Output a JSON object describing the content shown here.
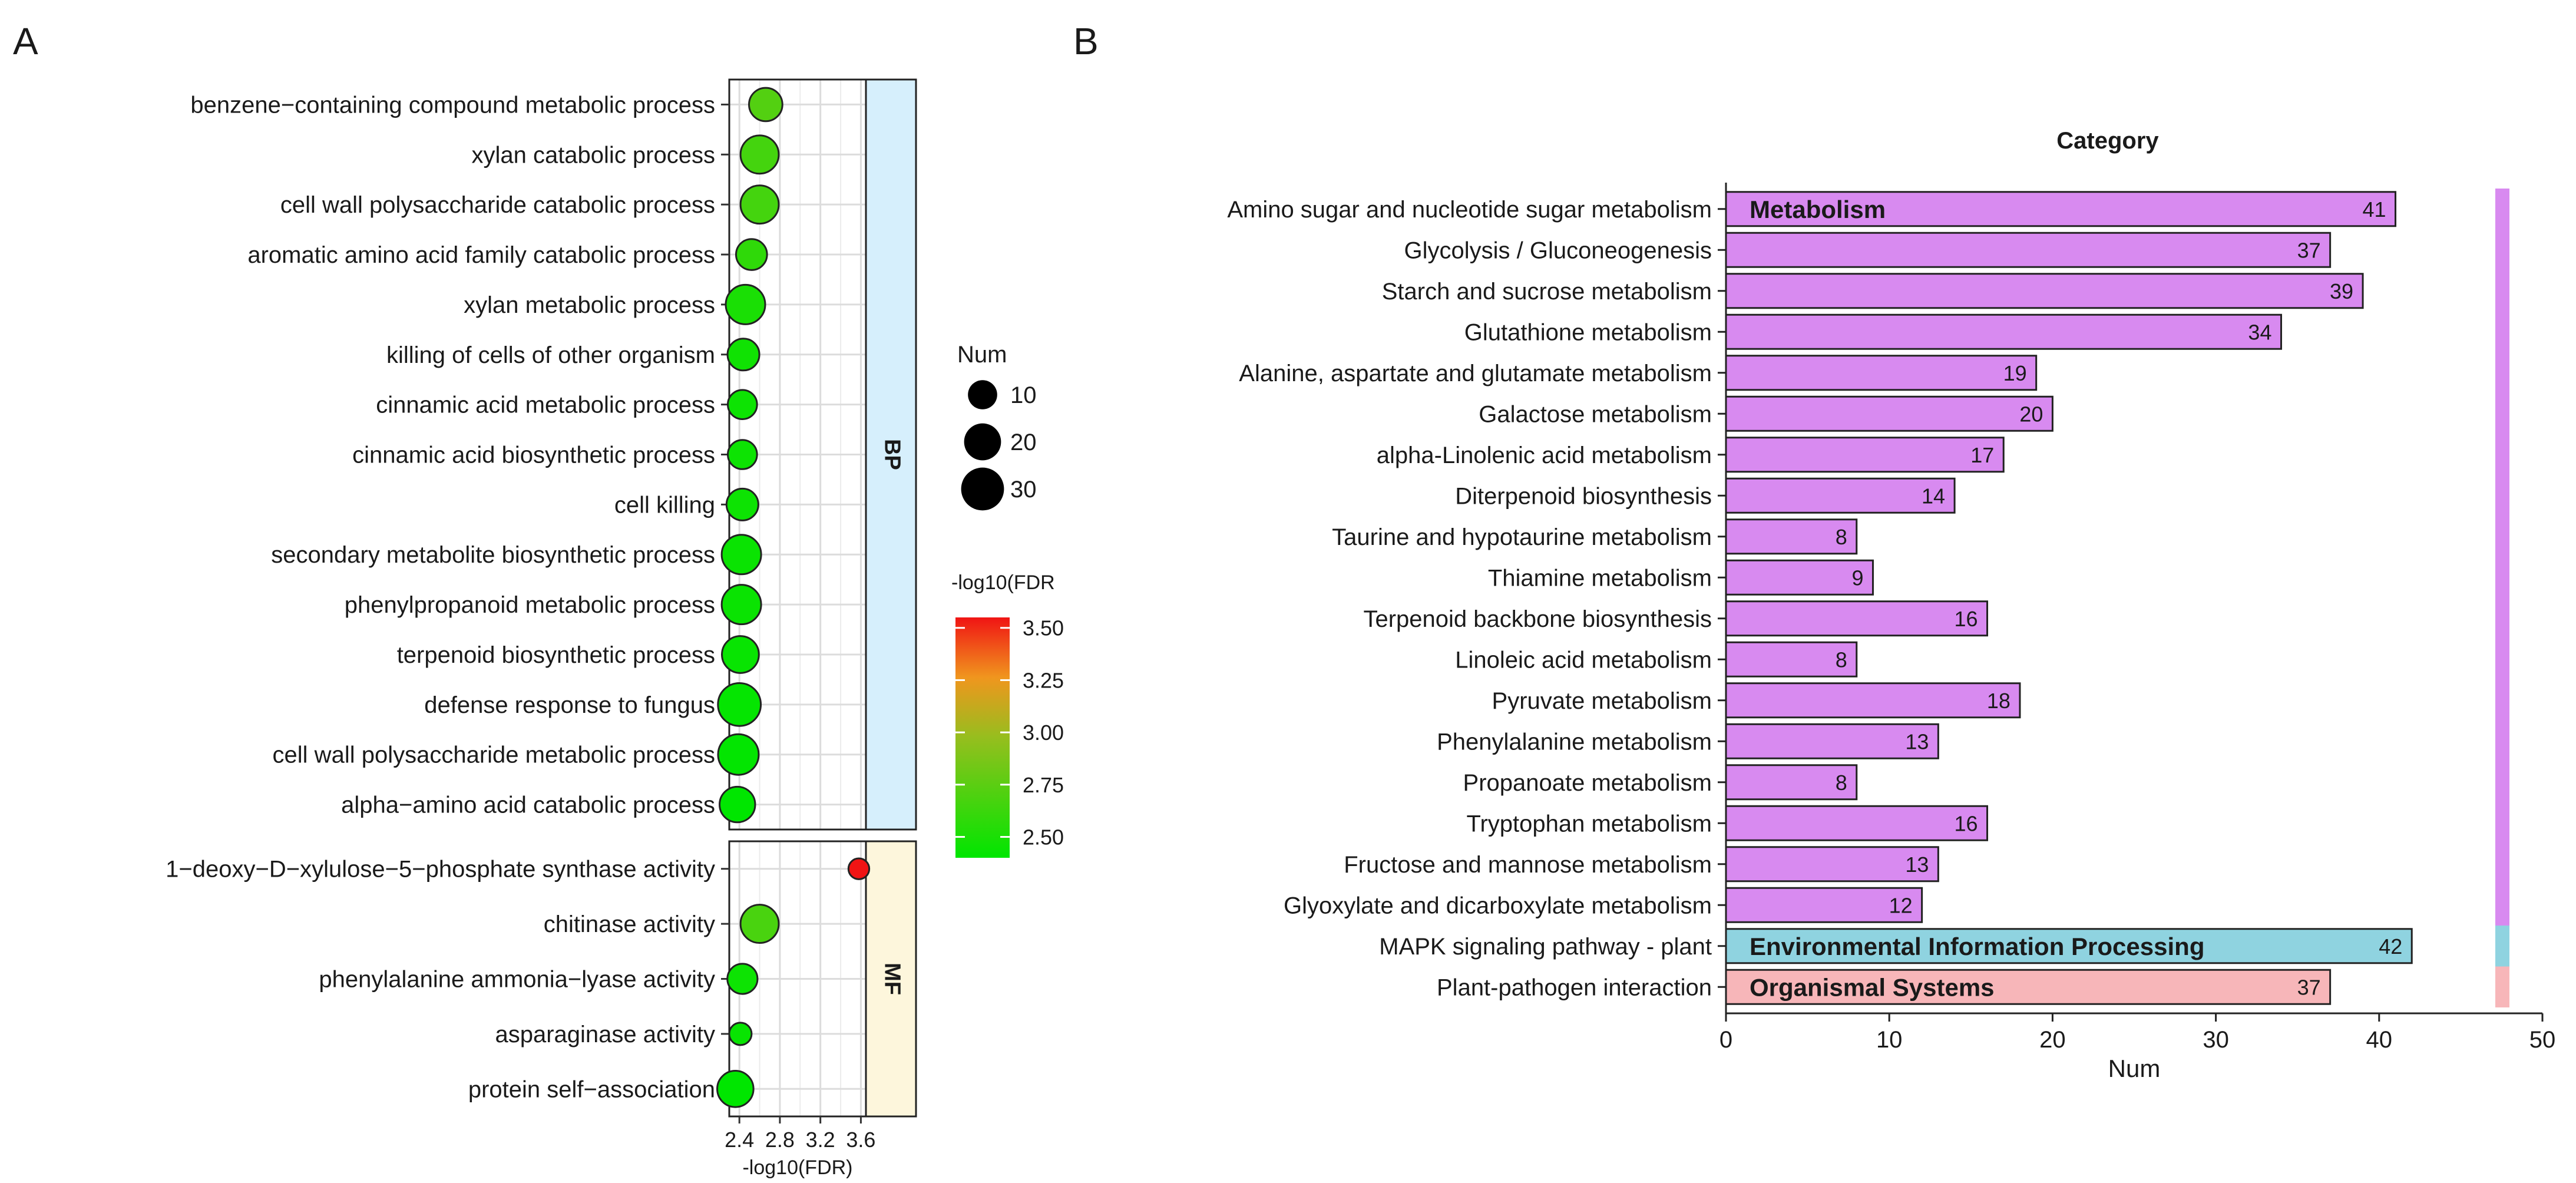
{
  "chart_data": [
    {
      "panel": "A",
      "type": "scatter",
      "xlabel": "-log10(FDR)",
      "xlim": [
        2.3,
        3.65
      ],
      "xticks": [
        "2.4",
        "2.8",
        "3.2",
        "3.6"
      ],
      "xtick_values": [
        2.4,
        2.8,
        3.2,
        3.6
      ],
      "size_legend": {
        "title": "Num",
        "values": [
          10,
          20,
          30
        ]
      },
      "color_legend": {
        "title": "-log10(FDR",
        "min": 2.4,
        "max": 3.55,
        "ticks": [
          "3.50",
          "3.25",
          "3.00",
          "2.75",
          "2.50"
        ],
        "tick_values": [
          3.5,
          3.25,
          3.0,
          2.75,
          2.5
        ]
      },
      "facets": [
        {
          "name": "BP",
          "terms": [
            {
              "label": "benzene−containing compound metabolic process",
              "x": 2.66,
              "num": 15,
              "fdr": 2.72
            },
            {
              "label": "xylan catabolic process",
              "x": 2.6,
              "num": 22,
              "fdr": 2.66
            },
            {
              "label": "cell wall polysaccharide catabolic process",
              "x": 2.6,
              "num": 22,
              "fdr": 2.66
            },
            {
              "label": "aromatic amino acid family catabolic process",
              "x": 2.52,
              "num": 12,
              "fdr": 2.58
            },
            {
              "label": "xylan metabolic process",
              "x": 2.46,
              "num": 24,
              "fdr": 2.5
            },
            {
              "label": "killing of cells of other organism",
              "x": 2.44,
              "num": 13,
              "fdr": 2.46
            },
            {
              "label": "cinnamic acid metabolic process",
              "x": 2.43,
              "num": 10,
              "fdr": 2.45
            },
            {
              "label": "cinnamic acid biosynthetic process",
              "x": 2.43,
              "num": 10,
              "fdr": 2.45
            },
            {
              "label": "cell killing",
              "x": 2.43,
              "num": 13,
              "fdr": 2.45
            },
            {
              "label": "secondary metabolite biosynthetic process",
              "x": 2.42,
              "num": 24,
              "fdr": 2.44
            },
            {
              "label": "phenylpropanoid metabolic process",
              "x": 2.42,
              "num": 24,
              "fdr": 2.44
            },
            {
              "label": "terpenoid biosynthetic process",
              "x": 2.41,
              "num": 20,
              "fdr": 2.43
            },
            {
              "label": "defense response to fungus",
              "x": 2.4,
              "num": 30,
              "fdr": 2.42
            },
            {
              "label": "cell wall polysaccharide metabolic process",
              "x": 2.39,
              "num": 26,
              "fdr": 2.41
            },
            {
              "label": "alpha−amino acid catabolic process",
              "x": 2.38,
              "num": 18,
              "fdr": 2.4
            }
          ]
        },
        {
          "name": "MF",
          "terms": [
            {
              "label": "1−deoxy−D−xylulose−5−phosphate synthase activity",
              "x": 3.58,
              "num": 3,
              "fdr": 3.58
            },
            {
              "label": "chitinase activity",
              "x": 2.6,
              "num": 22,
              "fdr": 2.68
            },
            {
              "label": "phenylalanine ammonia−lyase activity",
              "x": 2.43,
              "num": 11,
              "fdr": 2.45
            },
            {
              "label": "asparaginase activity",
              "x": 2.41,
              "num": 4,
              "fdr": 2.43
            },
            {
              "label": "protein self−association",
              "x": 2.36,
              "num": 19,
              "fdr": 2.38
            }
          ]
        }
      ]
    },
    {
      "panel": "B",
      "type": "bar",
      "orientation": "horizontal",
      "title": "Category",
      "xlabel": "Num",
      "xlim": [
        0,
        50
      ],
      "xticks": [
        "0",
        "10",
        "20",
        "30",
        "40",
        "50"
      ],
      "xtick_values": [
        0,
        10,
        20,
        30,
        40,
        50
      ],
      "categories": [
        "Amino sugar and nucleotide sugar metabolism",
        "Glycolysis / Gluconeogenesis",
        "Starch and sucrose metabolism",
        "Glutathione metabolism",
        "Alanine, aspartate and glutamate metabolism",
        "Galactose metabolism",
        "alpha-Linolenic acid metabolism",
        "Diterpenoid biosynthesis",
        "Taurine and hypotaurine metabolism",
        "Thiamine metabolism",
        "Terpenoid backbone biosynthesis",
        "Linoleic acid metabolism",
        "Pyruvate metabolism",
        "Phenylalanine metabolism",
        "Propanoate metabolism",
        "Tryptophan metabolism",
        "Fructose and mannose metabolism",
        "Glyoxylate and dicarboxylate metabolism",
        "MAPK signaling pathway - plant",
        "Plant-pathogen interaction"
      ],
      "values": [
        41,
        37,
        39,
        34,
        19,
        20,
        17,
        14,
        8,
        9,
        16,
        8,
        18,
        13,
        8,
        16,
        13,
        12,
        42,
        37
      ],
      "value_labels": [
        "41",
        "37",
        "39",
        "34",
        "19",
        "20",
        "17",
        "14",
        "8",
        "9",
        "16",
        "8",
        "18",
        "13",
        "8",
        "16",
        "13",
        "12",
        "42",
        "37"
      ],
      "groups": [
        {
          "name": "Metabolism",
          "start": 0,
          "end": 17,
          "color": "#d88af0"
        },
        {
          "name": "Environmental Information Processing",
          "start": 18,
          "end": 18,
          "color": "#8fd3e0"
        },
        {
          "name": "Organismal Systems",
          "start": 19,
          "end": 19,
          "color": "#f7b6b9"
        }
      ]
    }
  ],
  "panel_labels": {
    "a": "A",
    "b": "B"
  }
}
